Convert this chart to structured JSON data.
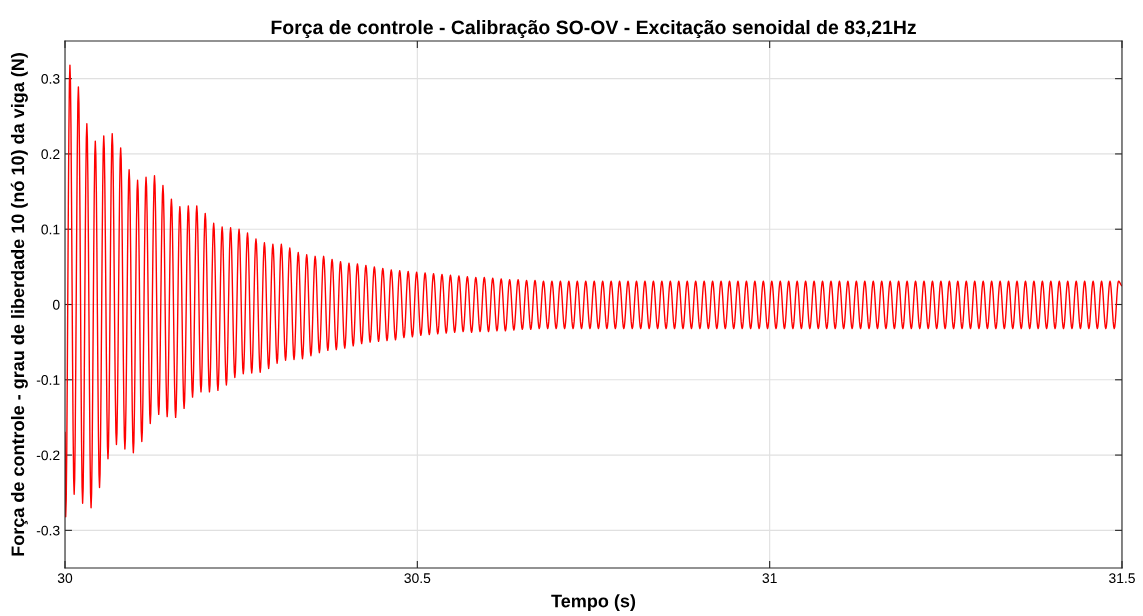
{
  "chart_data": {
    "type": "line",
    "title": "Força de controle - Calibração SO-OV - Excitação senoidal de 83,21Hz",
    "xlabel": "Tempo (s)",
    "ylabel": "Força de controle - grau de liberdade 10 (nó 10) da viga (N)",
    "xlim": [
      30,
      31.5
    ],
    "xticks": [
      30,
      30.5,
      31,
      31.5
    ],
    "ylim": [
      -0.35,
      0.35
    ],
    "yticks": [
      -0.3,
      -0.2,
      -0.1,
      0,
      0.1,
      0.2,
      0.3
    ],
    "grid": true,
    "marker": "none",
    "line_style": "solid",
    "series": [
      {
        "color": "#ff0000",
        "x": [
          30,
          30.001,
          30.007,
          30.013,
          30.019,
          30.025,
          30.031,
          30.037,
          30.043,
          30.049,
          30.055,
          30.061,
          30.067,
          30.073,
          30.079,
          30.085,
          30.091,
          30.097,
          30.103,
          30.109,
          30.115,
          30.121,
          30.127,
          30.133,
          30.139,
          30.145,
          30.151,
          30.157,
          30.163,
          30.169,
          30.175,
          30.181,
          30.187,
          30.193,
          30.199,
          30.205,
          30.211,
          30.217,
          30.223,
          30.229,
          30.235,
          30.241,
          30.247,
          30.253,
          30.259,
          30.265,
          30.271,
          30.277,
          30.283,
          30.289,
          30.295,
          30.301,
          30.307,
          30.313,
          30.319,
          30.325,
          30.331,
          30.337,
          30.343,
          30.349,
          30.355,
          30.361,
          30.367,
          30.373,
          30.379,
          30.385,
          30.391,
          30.397,
          30.403,
          30.409,
          30.415,
          30.421,
          30.427,
          30.433,
          30.439,
          30.445,
          30.451,
          30.457,
          30.463,
          30.469,
          30.475,
          30.481,
          30.487,
          30.493,
          30.499,
          30.505,
          30.511,
          30.517,
          30.523,
          30.529,
          30.535,
          30.541,
          30.547,
          30.553,
          30.559,
          30.565,
          30.571,
          30.577,
          30.583,
          30.589,
          30.595,
          30.601,
          30.607,
          30.613,
          30.619,
          30.625,
          30.631,
          30.637,
          30.643,
          30.649,
          30.655,
          30.661,
          30.667,
          30.673,
          30.679,
          30.685,
          30.691,
          30.697,
          30.703,
          30.709,
          30.715,
          30.721,
          30.727,
          30.733,
          30.739,
          30.745,
          30.751,
          30.757,
          30.763,
          30.769,
          30.775,
          30.781,
          30.787,
          30.793,
          30.799,
          30.805,
          30.811,
          30.817,
          30.823,
          30.829,
          30.835,
          30.841,
          30.847,
          30.853,
          30.859,
          30.865,
          30.871,
          30.877,
          30.883,
          30.889,
          30.895,
          30.901,
          30.907,
          30.913,
          30.919,
          30.925,
          30.931,
          30.937,
          30.943,
          30.949,
          30.955,
          30.961,
          30.967,
          30.973,
          30.979,
          30.985,
          30.991,
          30.997,
          31.003,
          31.009,
          31.015,
          31.021,
          31.027,
          31.033,
          31.039,
          31.045,
          31.051,
          31.057,
          31.063,
          31.069,
          31.075,
          31.081,
          31.087,
          31.093,
          31.099,
          31.105,
          31.111,
          31.117,
          31.123,
          31.129,
          31.135,
          31.141,
          31.147,
          31.153,
          31.159,
          31.165,
          31.171,
          31.177,
          31.183,
          31.189,
          31.195,
          31.201,
          31.207,
          31.213,
          31.219,
          31.225,
          31.231,
          31.237,
          31.243,
          31.249,
          31.255,
          31.261,
          31.267,
          31.273,
          31.279,
          31.285,
          31.291,
          31.297,
          31.303,
          31.309,
          31.315,
          31.321,
          31.327,
          31.333,
          31.339,
          31.345,
          31.351,
          31.357,
          31.363,
          31.369,
          31.375,
          31.381,
          31.387,
          31.393,
          31.399,
          31.405,
          31.411,
          31.417,
          31.423,
          31.429,
          31.435,
          31.441,
          31.447,
          31.453,
          31.459,
          31.465,
          31.471,
          31.477,
          31.483,
          31.489,
          31.495,
          31.5
        ],
        "values": [
          -0.17,
          -0.282,
          0.318,
          -0.252,
          0.289,
          -0.264,
          0.24,
          -0.27,
          0.217,
          -0.243,
          0.224,
          -0.205,
          0.227,
          -0.186,
          0.208,
          -0.192,
          0.179,
          -0.197,
          0.165,
          -0.182,
          0.169,
          -0.158,
          0.171,
          -0.146,
          0.158,
          -0.149,
          0.14,
          -0.15,
          0.13,
          -0.138,
          0.131,
          -0.123,
          0.131,
          -0.116,
          0.121,
          -0.116,
          0.108,
          -0.114,
          0.103,
          -0.107,
          0.102,
          -0.097,
          0.1,
          -0.092,
          0.095,
          -0.091,
          0.087,
          -0.09,
          0.082,
          -0.085,
          0.08,
          -0.078,
          0.08,
          -0.074,
          0.075,
          -0.073,
          0.069,
          -0.072,
          0.066,
          -0.068,
          0.064,
          -0.064,
          0.064,
          -0.061,
          0.06,
          -0.06,
          0.057,
          -0.058,
          0.055,
          -0.055,
          0.054,
          -0.052,
          0.052,
          -0.05,
          0.05,
          -0.049,
          0.048,
          -0.048,
          0.046,
          -0.047,
          0.045,
          -0.044,
          0.044,
          -0.043,
          0.043,
          -0.041,
          0.042,
          -0.04,
          0.041,
          -0.039,
          0.04,
          -0.038,
          0.039,
          -0.037,
          0.038,
          -0.036,
          0.037,
          -0.037,
          0.036,
          -0.036,
          0.036,
          -0.036,
          0.035,
          -0.035,
          0.034,
          -0.035,
          0.033,
          -0.034,
          0.033,
          -0.033,
          0.032,
          -0.033,
          0.032,
          -0.032,
          0.031,
          -0.032,
          0.031,
          -0.032,
          0.031,
          -0.032,
          0.031,
          -0.032,
          0.031,
          -0.032,
          0.031,
          -0.032,
          0.031,
          -0.032,
          0.031,
          -0.032,
          0.031,
          -0.032,
          0.031,
          -0.032,
          0.031,
          -0.032,
          0.031,
          -0.032,
          0.031,
          -0.032,
          0.031,
          -0.032,
          0.031,
          -0.032,
          0.031,
          -0.032,
          0.031,
          -0.032,
          0.031,
          -0.032,
          0.031,
          -0.032,
          0.031,
          -0.032,
          0.031,
          -0.032,
          0.031,
          -0.032,
          0.031,
          -0.032,
          0.031,
          -0.032,
          0.031,
          -0.032,
          0.031,
          -0.032,
          0.031,
          -0.032,
          0.031,
          -0.032,
          0.031,
          -0.032,
          0.031,
          -0.032,
          0.031,
          -0.032,
          0.031,
          -0.032,
          0.031,
          -0.032,
          0.031,
          -0.032,
          0.031,
          -0.032,
          0.031,
          -0.032,
          0.031,
          -0.032,
          0.031,
          -0.032,
          0.031,
          -0.032,
          0.031,
          -0.032,
          0.031,
          -0.032,
          0.031,
          -0.032,
          0.031,
          -0.032,
          0.031,
          -0.032,
          0.031,
          -0.032,
          0.031,
          -0.032,
          0.031,
          -0.032,
          0.031,
          -0.032,
          0.031,
          -0.032,
          0.031,
          -0.032,
          0.031,
          -0.032,
          0.031,
          -0.032,
          0.031,
          -0.032,
          0.031,
          -0.032,
          0.031,
          -0.032,
          0.031,
          -0.032,
          0.031,
          -0.032,
          0.031,
          -0.032,
          0.031,
          -0.032,
          0.031,
          -0.032,
          0.031,
          -0.032,
          0.031,
          -0.032,
          0.031,
          -0.032,
          0.031,
          -0.032,
          0.031,
          -0.032,
          0.031,
          -0.032,
          0.031,
          -0.032,
          0.031,
          -0.032,
          0.031,
          0.025
        ]
      }
    ]
  }
}
